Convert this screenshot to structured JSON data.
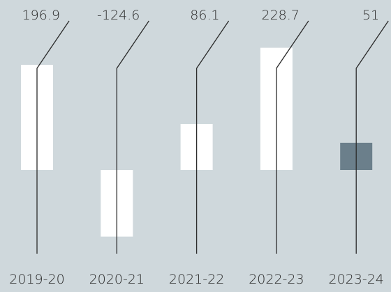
{
  "chart_data": {
    "type": "bar",
    "categories": [
      "2019-20",
      "2020-21",
      "2021-22",
      "2022-23",
      "2023-24"
    ],
    "values": [
      196.9,
      -124.6,
      86.1,
      228.7,
      51
    ],
    "colors": [
      "#ffffff",
      "#ffffff",
      "#ffffff",
      "#ffffff",
      "#6b7f8b"
    ]
  }
}
